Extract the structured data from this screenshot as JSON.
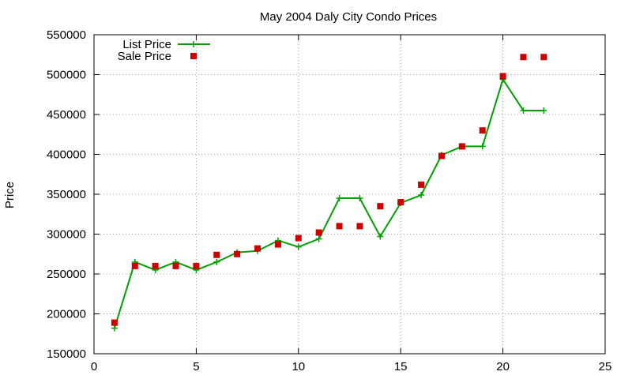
{
  "chart_data": {
    "type": "line",
    "title": "May 2004 Daly City Condo Prices",
    "xlabel": "",
    "ylabel": "Price",
    "xlim": [
      0,
      25
    ],
    "ylim": [
      150000,
      550000
    ],
    "x_ticks": [
      "0",
      "5",
      "10",
      "15",
      "20",
      "25"
    ],
    "y_ticks": [
      "150000",
      "200000",
      "250000",
      "300000",
      "350000",
      "400000",
      "450000",
      "500000",
      "550000"
    ],
    "grid": true,
    "legend_position": "top-left",
    "series": [
      {
        "name": "List Price",
        "style": "line-plus",
        "color": "#00a000",
        "points": [
          [
            1,
            182000
          ],
          [
            2,
            265000
          ],
          [
            3,
            255000
          ],
          [
            4,
            265000
          ],
          [
            5,
            255000
          ],
          [
            6,
            265000
          ],
          [
            7,
            277000
          ],
          [
            8,
            279000
          ],
          [
            9,
            292000
          ],
          [
            10,
            284000
          ],
          [
            11,
            294000
          ],
          [
            12,
            345000
          ],
          [
            13,
            345000
          ],
          [
            14,
            297000
          ],
          [
            15,
            339000
          ],
          [
            16,
            349000
          ],
          [
            17,
            399000
          ],
          [
            18,
            410000
          ],
          [
            19,
            410000
          ],
          [
            20,
            494000
          ],
          [
            21,
            455000
          ],
          [
            22,
            455000
          ]
        ]
      },
      {
        "name": "Sale Price",
        "style": "square",
        "color": "#cc0000",
        "points": [
          [
            1,
            189000
          ],
          [
            2,
            260000
          ],
          [
            3,
            260000
          ],
          [
            4,
            260000
          ],
          [
            5,
            260000
          ],
          [
            6,
            274000
          ],
          [
            7,
            275000
          ],
          [
            8,
            282000
          ],
          [
            9,
            287000
          ],
          [
            10,
            295000
          ],
          [
            11,
            302000
          ],
          [
            12,
            310000
          ],
          [
            13,
            310000
          ],
          [
            14,
            335000
          ],
          [
            15,
            340000
          ],
          [
            16,
            362000
          ],
          [
            17,
            398000
          ],
          [
            18,
            410000
          ],
          [
            19,
            430000
          ],
          [
            20,
            498000
          ],
          [
            21,
            522000
          ],
          [
            22,
            522000
          ]
        ]
      }
    ]
  }
}
